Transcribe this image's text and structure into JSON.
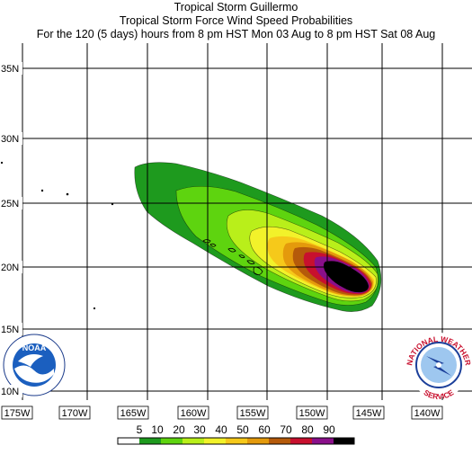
{
  "title": {
    "line1": "Tropical Storm Guillermo",
    "line2": "Tropical Storm Force Wind Speed Probabilities",
    "line3": "For the 120 (5 days) hours from 8 pm HST Mon 03 Aug to 8 pm HST Sat 08 Aug"
  },
  "map": {
    "lat_labels": [
      "35N",
      "30N",
      "25N",
      "20N",
      "15N",
      "10N"
    ],
    "lon_labels": [
      "175W",
      "170W",
      "165W",
      "160W",
      "155W",
      "150W",
      "145W",
      "140W"
    ],
    "lat_range": [
      10,
      35
    ],
    "lon_range": [
      -175,
      -140
    ]
  },
  "legend": {
    "labels": [
      "5",
      "10",
      "20",
      "30",
      "40",
      "50",
      "60",
      "70",
      "80",
      "90"
    ],
    "colors": [
      "#ffffff",
      "#1e9a1e",
      "#5ed40f",
      "#b9ef1a",
      "#f2f22a",
      "#f6c91a",
      "#e49a0c",
      "#b55a0a",
      "#c8102e",
      "#8a0f8a",
      "#000000"
    ]
  },
  "logos": {
    "noaa": "NOAA",
    "nws_top": "NATIONAL WEATHER",
    "nws_bottom": "SERVICE"
  },
  "icons": {
    "left": "noaa-logo-icon",
    "right": "nws-logo-icon"
  }
}
